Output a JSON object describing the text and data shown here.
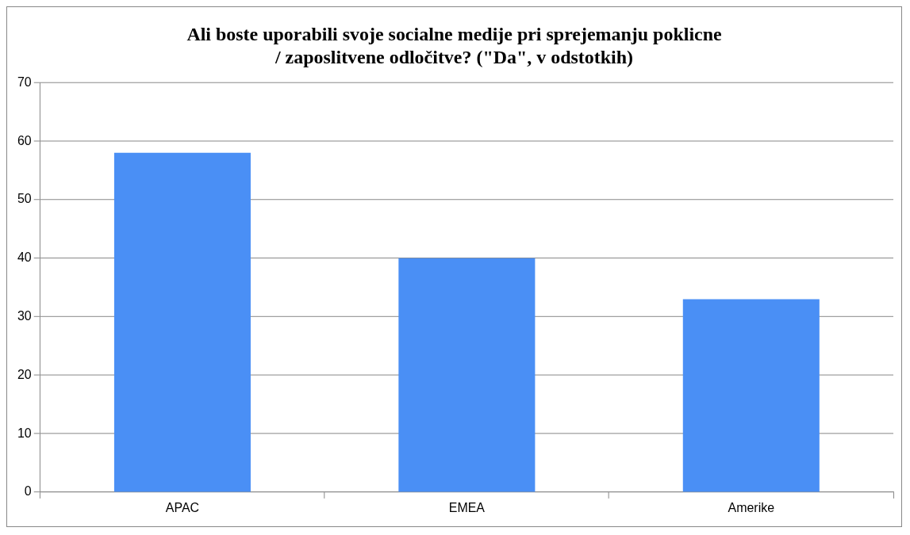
{
  "chart_data": {
    "type": "bar",
    "title": "Ali boste uporabili svoje socialne medije pri sprejemanju poklicne / zaposlitvene odločitve? (\"Da\", v odstotkih)",
    "categories": [
      "APAC",
      "EMEA",
      "Amerike"
    ],
    "values": [
      58,
      40,
      33
    ],
    "color": "#4a8ff5",
    "ylim": [
      0,
      70
    ],
    "yticks": [
      0,
      10,
      20,
      30,
      40,
      50,
      60,
      70
    ],
    "grid": "y",
    "legend": false
  }
}
